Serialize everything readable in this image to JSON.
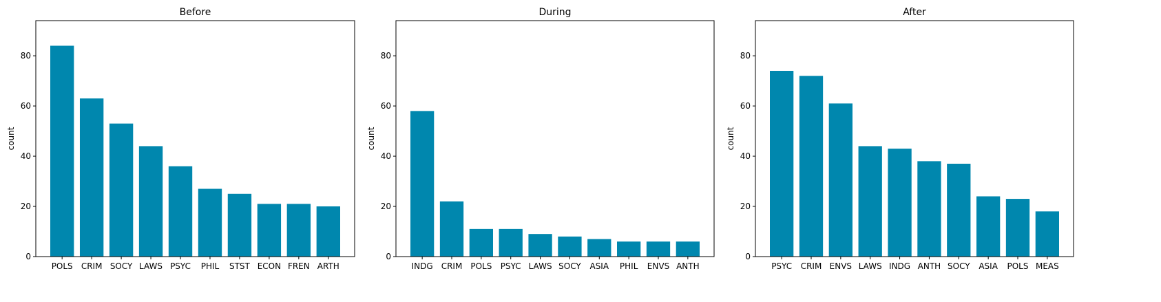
{
  "colors": {
    "bar": "#0087ae",
    "axis": "#000000",
    "background": "#ffffff"
  },
  "chart_data": [
    {
      "type": "bar",
      "title": "Before",
      "xlabel": "",
      "ylabel": "count",
      "ylim": [
        0,
        94
      ],
      "yticks": [
        0,
        20,
        40,
        60,
        80
      ],
      "grid": false,
      "categories": [
        "POLS",
        "CRIM",
        "SOCY",
        "LAWS",
        "PSYC",
        "PHIL",
        "STST",
        "ECON",
        "FREN",
        "ARTH"
      ],
      "values": [
        84,
        63,
        53,
        44,
        36,
        27,
        25,
        21,
        21,
        20
      ]
    },
    {
      "type": "bar",
      "title": "During",
      "xlabel": "",
      "ylabel": "count",
      "ylim": [
        0,
        94
      ],
      "yticks": [
        0,
        20,
        40,
        60,
        80
      ],
      "grid": false,
      "categories": [
        "INDG",
        "CRIM",
        "POLS",
        "PSYC",
        "LAWS",
        "SOCY",
        "ASIA",
        "PHIL",
        "ENVS",
        "ANTH"
      ],
      "values": [
        58,
        22,
        11,
        11,
        9,
        8,
        7,
        6,
        6,
        6
      ]
    },
    {
      "type": "bar",
      "title": "After",
      "xlabel": "",
      "ylabel": "count",
      "ylim": [
        0,
        94
      ],
      "yticks": [
        0,
        20,
        40,
        60,
        80
      ],
      "grid": false,
      "categories": [
        "PSYC",
        "CRIM",
        "ENVS",
        "LAWS",
        "INDG",
        "ANTH",
        "SOCY",
        "ASIA",
        "POLS",
        "MEAS"
      ],
      "values": [
        74,
        72,
        61,
        44,
        43,
        38,
        37,
        24,
        23,
        18
      ]
    }
  ]
}
